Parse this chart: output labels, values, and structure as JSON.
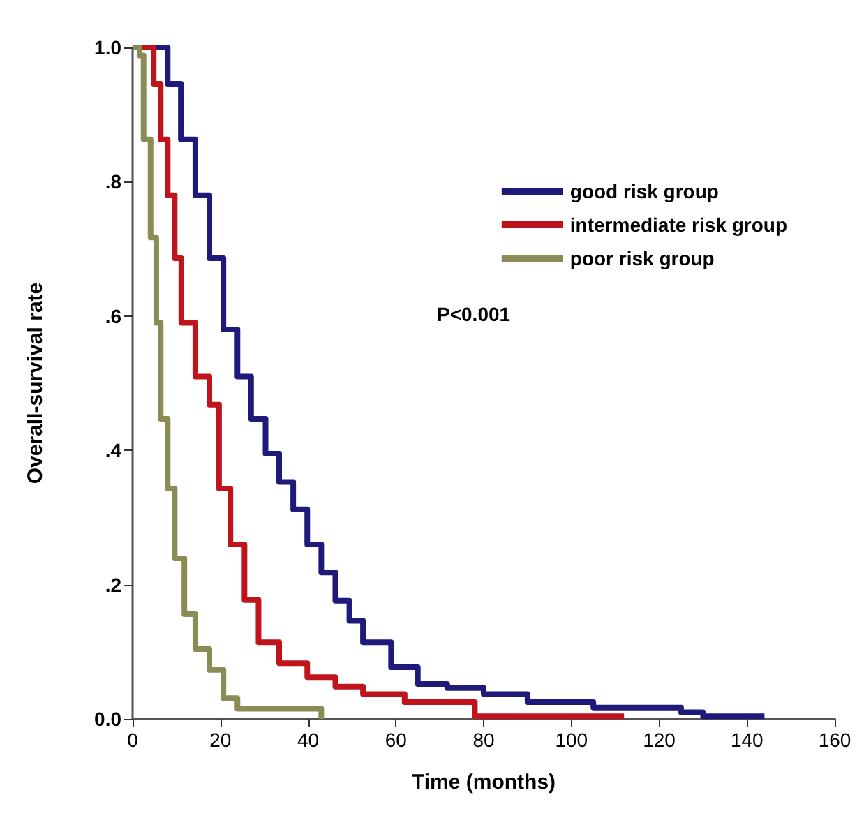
{
  "chart_data": {
    "type": "step",
    "xlabel": "Time (months)",
    "ylabel": "Overall-survival rate",
    "annotations": [
      "P<0.001"
    ],
    "xlim": [
      0,
      160
    ],
    "xticks": [
      0,
      20,
      40,
      60,
      80,
      100,
      120,
      140,
      160
    ],
    "ylim": [
      0,
      1
    ],
    "yticks": [
      {
        "value": 0,
        "label": "0.0"
      },
      {
        "value": 0.2,
        "label": ".2"
      },
      {
        "value": 0.4,
        "label": ".4"
      },
      {
        "value": 0.6,
        "label": ".6"
      },
      {
        "value": 0.8,
        "label": ".8"
      },
      {
        "value": 1,
        "label": "1.0"
      }
    ],
    "grid": false,
    "legend": "top right",
    "marker": "none",
    "line_style": "solid",
    "series": [
      {
        "name": "good risk group",
        "color": "#1f1a7a",
        "x": [
          0,
          5.4,
          8,
          11,
          14.3,
          17.5,
          20.7,
          23.9,
          27,
          30.3,
          33.4,
          36.6,
          39.8,
          43,
          46.2,
          49.4,
          52.5,
          58.9,
          65,
          71.7,
          80,
          90,
          105,
          125,
          130,
          144
        ],
        "values": [
          1,
          1,
          0.946,
          0.863,
          0.78,
          0.686,
          0.58,
          0.51,
          0.447,
          0.395,
          0.353,
          0.312,
          0.26,
          0.218,
          0.176,
          0.146,
          0.114,
          0.077,
          0.052,
          0.046,
          0.037,
          0.025,
          0.017,
          0.01,
          0.004,
          0.004
        ]
      },
      {
        "name": "intermediate risk group",
        "color": "#c0141c",
        "x": [
          0,
          1.6,
          4.8,
          6.4,
          8,
          9.6,
          11.1,
          14.3,
          17.5,
          19.7,
          22.3,
          25.5,
          28.7,
          33.4,
          39.8,
          46.2,
          52.5,
          62,
          78,
          112
        ],
        "values": [
          1,
          1,
          0.946,
          0.863,
          0.78,
          0.686,
          0.59,
          0.51,
          0.468,
          0.343,
          0.26,
          0.177,
          0.114,
          0.083,
          0.062,
          0.048,
          0.037,
          0.025,
          0.004,
          0.004
        ]
      },
      {
        "name": "poor risk group",
        "color": "#8b8b55",
        "x": [
          0,
          1.6,
          2.5,
          4.1,
          5.4,
          6.4,
          8,
          9.6,
          11.8,
          14.3,
          17.5,
          20.7,
          23.9,
          43,
          43
        ],
        "values": [
          1,
          0.988,
          0.863,
          0.717,
          0.59,
          0.447,
          0.343,
          0.239,
          0.156,
          0.104,
          0.073,
          0.031,
          0.015,
          0.015,
          0
        ]
      }
    ]
  }
}
